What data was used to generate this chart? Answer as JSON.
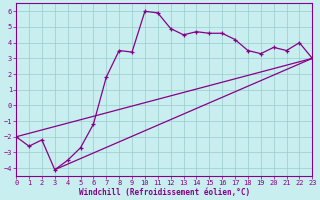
{
  "xlabel": "Windchill (Refroidissement éolien,°C)",
  "bg_color": "#c8eef0",
  "line_color": "#880088",
  "grid_color": "#99cccc",
  "xlim": [
    0,
    23
  ],
  "ylim": [
    -4.5,
    6.5
  ],
  "xticks": [
    0,
    1,
    2,
    3,
    4,
    5,
    6,
    7,
    8,
    9,
    10,
    11,
    12,
    13,
    14,
    15,
    16,
    17,
    18,
    19,
    20,
    21,
    22,
    23
  ],
  "yticks": [
    -4,
    -3,
    -2,
    -1,
    0,
    1,
    2,
    3,
    4,
    5,
    6
  ],
  "line1_x": [
    0,
    1,
    2,
    3,
    4,
    5,
    6,
    7,
    8,
    9,
    10,
    11,
    12,
    13,
    14,
    15,
    16,
    17,
    18,
    19,
    20,
    21,
    22,
    23
  ],
  "line1_y": [
    -2.0,
    -2.6,
    -2.2,
    -4.1,
    -3.5,
    -2.7,
    -1.2,
    1.8,
    3.5,
    3.4,
    6.0,
    5.9,
    4.9,
    4.5,
    4.7,
    4.6,
    4.6,
    4.2,
    3.5,
    3.3,
    3.7,
    3.5,
    4.0,
    3.0
  ],
  "line2_x": [
    0,
    23
  ],
  "line2_y": [
    -2.0,
    3.0
  ],
  "line3_x": [
    3,
    23
  ],
  "line3_y": [
    -4.1,
    3.0
  ]
}
